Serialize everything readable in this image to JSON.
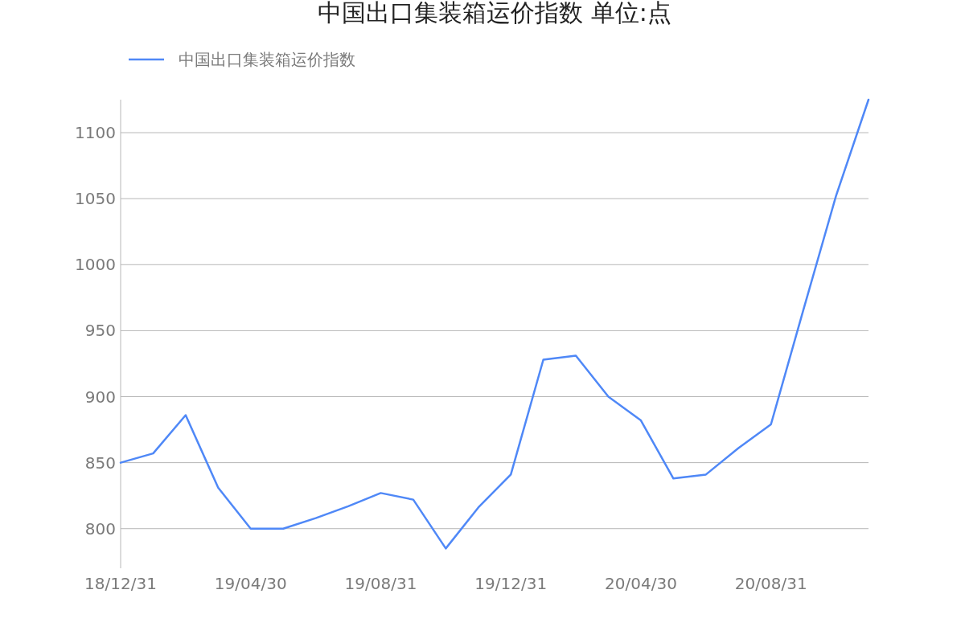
{
  "chart_data": {
    "type": "line",
    "title": "中国出口集装箱运价指数 单位:点",
    "categories": [
      "18/12/31",
      null,
      null,
      null,
      "19/04/30",
      null,
      null,
      null,
      "19/08/31",
      null,
      null,
      null,
      "19/12/31",
      null,
      null,
      null,
      "20/04/30",
      null,
      null,
      null,
      "20/08/31",
      null,
      null,
      null
    ],
    "series": [
      {
        "name": "中国出口集装箱运价指数",
        "color": "#4f88f7",
        "values": [
          850,
          857,
          886,
          831,
          800,
          800,
          808,
          817,
          827,
          822,
          785,
          816,
          841,
          928,
          931,
          900,
          882,
          838,
          841,
          861,
          879,
          966,
          1052,
          1125
        ]
      }
    ],
    "ylim": [
      770,
      1125
    ],
    "yticks": [
      800,
      850,
      900,
      950,
      1000,
      1050,
      1100
    ],
    "grid": "y",
    "legend": "top left"
  }
}
